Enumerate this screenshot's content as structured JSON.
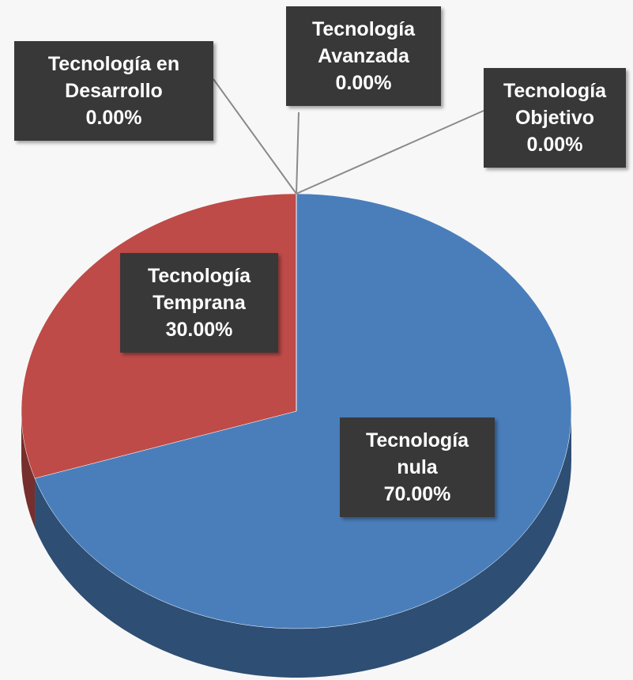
{
  "chart_data": {
    "type": "pie",
    "categories": [
      "Tecnología nula",
      "Tecnología Temprana",
      "Tecnología en Desarrollo",
      "Tecnología Avanzada",
      "Tecnología Objetivo"
    ],
    "values": [
      70,
      30,
      0,
      0,
      0
    ],
    "value_labels": [
      "70.00%",
      "30.00%",
      "0.00%",
      "0.00%",
      "0.00%"
    ],
    "colors": [
      "#4a7ebb",
      "#be4b48",
      "#98b954",
      "#7d60a0",
      "#46aac5"
    ]
  }
}
